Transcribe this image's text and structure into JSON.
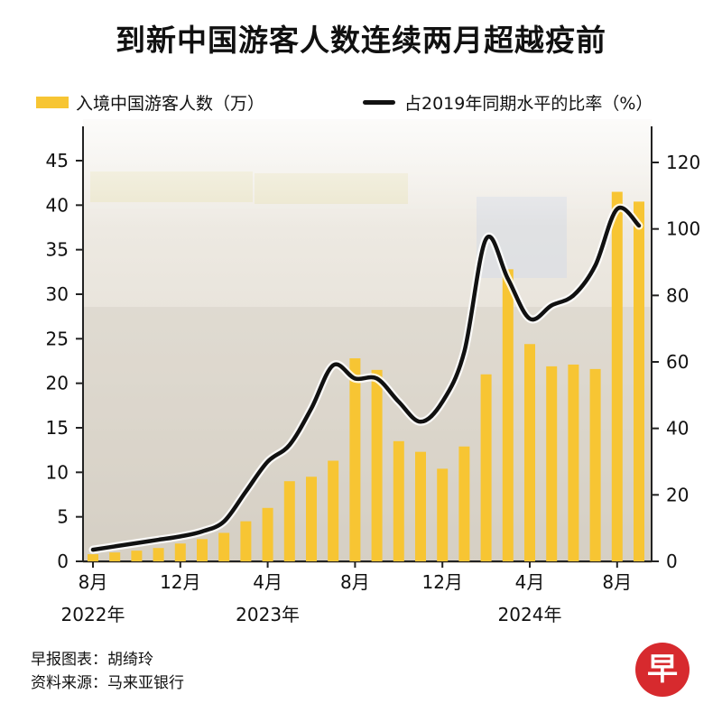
{
  "title": "到新中国游客人数连续两月超越疫前",
  "legend": {
    "bars": "入境中国游客人数（万）",
    "line": "占2019年同期水平的比率（%）"
  },
  "credits": {
    "chart": "早报图表：胡绮玲",
    "source": "资料来源：马来亚银行"
  },
  "logo": "早",
  "colors": {
    "bar": "#f7c533",
    "line": "#111111",
    "logo": "#d72a2e"
  },
  "chart_data": {
    "type": "bar",
    "title": "到新中国游客人数连续两月超越疫前",
    "categories": [
      "2022-08",
      "2022-09",
      "2022-10",
      "2022-11",
      "2022-12",
      "2023-01",
      "2023-02",
      "2023-03",
      "2023-04",
      "2023-05",
      "2023-06",
      "2023-07",
      "2023-08",
      "2023-09",
      "2023-10",
      "2023-11",
      "2023-12",
      "2024-01",
      "2024-02",
      "2024-03",
      "2024-04",
      "2024-05",
      "2024-06",
      "2024-07",
      "2024-08",
      "2024-09"
    ],
    "x_tick_labels": [
      {
        "index": 0,
        "month": "8月",
        "year": "2022年"
      },
      {
        "index": 4,
        "month": "12月",
        "year": ""
      },
      {
        "index": 8,
        "month": "4月",
        "year": "2023年"
      },
      {
        "index": 12,
        "month": "8月",
        "year": ""
      },
      {
        "index": 16,
        "month": "12月",
        "year": ""
      },
      {
        "index": 20,
        "month": "4月",
        "year": "2024年"
      },
      {
        "index": 24,
        "month": "8月",
        "year": ""
      }
    ],
    "series": [
      {
        "name": "入境中国游客人数（万）",
        "axis": "left",
        "type": "bar",
        "values": [
          0.8,
          1.0,
          1.2,
          1.5,
          2.0,
          2.5,
          3.2,
          4.5,
          6.0,
          9.0,
          9.5,
          11.3,
          22.8,
          21.5,
          13.5,
          12.3,
          10.4,
          12.9,
          21.0,
          32.8,
          24.4,
          21.9,
          22.1,
          21.6,
          41.5,
          40.4
        ]
      },
      {
        "name": "占2019年同期水平的比率（%）",
        "axis": "right",
        "type": "line",
        "values": [
          3.5,
          4.5,
          5.5,
          6.5,
          7.5,
          9.0,
          12.0,
          21.0,
          30.0,
          35.0,
          46.0,
          59.0,
          55.0,
          55.0,
          48.0,
          42.0,
          48.0,
          63.0,
          97.0,
          85.0,
          73.0,
          77.0,
          80.0,
          89.0,
          106.0,
          101.0
        ]
      }
    ],
    "y_left": {
      "ylim": [
        0,
        45
      ],
      "ticks": [
        0,
        5,
        10,
        15,
        20,
        25,
        30,
        35,
        40,
        45
      ]
    },
    "y_right": {
      "ylim": [
        0,
        130
      ],
      "ticks": [
        0,
        20,
        40,
        60,
        80,
        100,
        120
      ]
    },
    "grid": false,
    "legend_position": "top"
  }
}
